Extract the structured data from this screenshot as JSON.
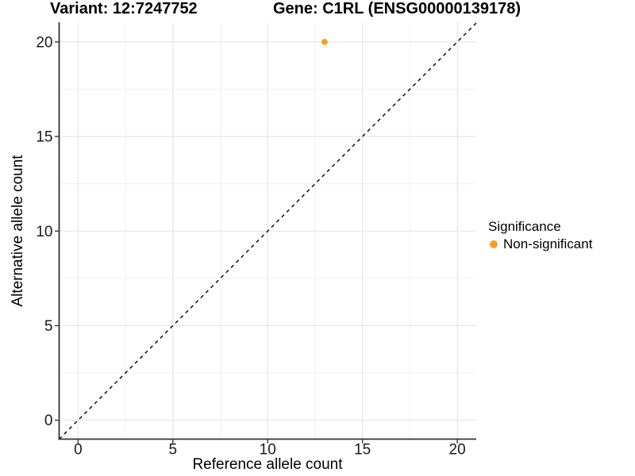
{
  "chart_data": {
    "type": "scatter",
    "title_left": "Variant: 12:7247752",
    "title_right": "Gene: C1RL (ENSG00000139178)",
    "xlabel": "Reference allele count",
    "ylabel": "Alternative allele count",
    "xlim": [
      -1,
      21
    ],
    "ylim": [
      -1,
      21
    ],
    "x_ticks": [
      0,
      5,
      10,
      15,
      20
    ],
    "y_ticks": [
      0,
      5,
      10,
      15,
      20
    ],
    "x_minor_gridlines": [
      2.5,
      7.5,
      12.5,
      17.5
    ],
    "y_minor_gridlines": [
      2.5,
      7.5,
      12.5,
      17.5
    ],
    "grid": "major and minor light-gray gridlines on white background",
    "series": [
      {
        "name": "Non-significant",
        "color": "#F9A023",
        "points": [
          {
            "x": 13,
            "y": 20
          }
        ]
      }
    ],
    "reference_line": {
      "type": "identity",
      "equation": "y = x",
      "style": "dashed",
      "color": "#000000"
    },
    "legend": {
      "title": "Significance",
      "position": "right",
      "entries": [
        {
          "label": "Non-significant",
          "color": "#F9A023"
        }
      ]
    },
    "colors": {
      "grid_major": "#E4E4E4",
      "grid_minor": "#F0F0F0",
      "axis": "#333333",
      "tick_label": "#1A1A1A",
      "text": "#000000"
    }
  }
}
